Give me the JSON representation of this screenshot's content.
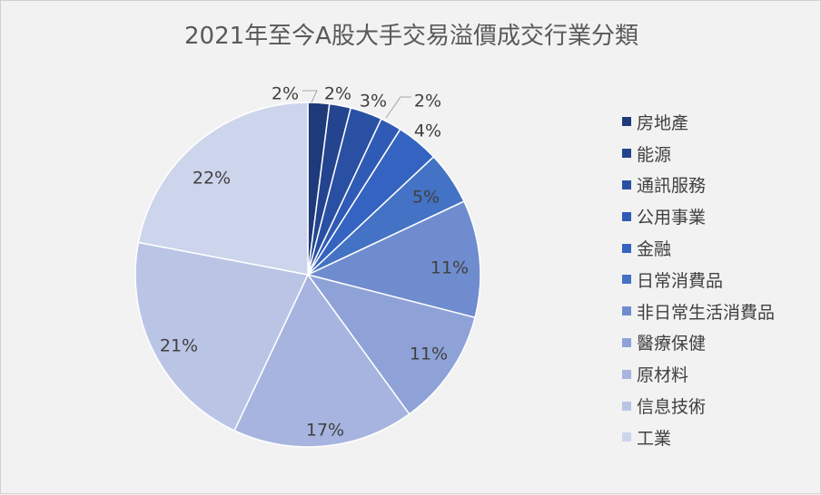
{
  "chart_data": {
    "type": "pie",
    "title": "2021年至今A股大手交易溢價成交行業分類",
    "legend_position": "right",
    "slices": [
      {
        "name": "房地產",
        "value": 2,
        "label": "2%",
        "color": "#1f3a7a"
      },
      {
        "name": "能源",
        "value": 2,
        "label": "2%",
        "color": "#24448f"
      },
      {
        "name": "通訊服務",
        "value": 3,
        "label": "3%",
        "color": "#2a50a3"
      },
      {
        "name": "公用事業",
        "value": 2,
        "label": "2%",
        "color": "#2f5ab5"
      },
      {
        "name": "金融",
        "value": 4,
        "label": "4%",
        "color": "#3563c2"
      },
      {
        "name": "日常消費品",
        "value": 5,
        "label": "5%",
        "color": "#4472c4"
      },
      {
        "name": "非日常生活消費品",
        "value": 11,
        "label": "11%",
        "color": "#6f8ccf"
      },
      {
        "name": "醫療保健",
        "value": 11,
        "label": "11%",
        "color": "#8ea2d8"
      },
      {
        "name": "原材料",
        "value": 17,
        "label": "17%",
        "color": "#a6b4df"
      },
      {
        "name": "信息技術",
        "value": 21,
        "label": "21%",
        "color": "#bac5e6"
      },
      {
        "name": "工業",
        "value": 22,
        "label": "22%",
        "color": "#cdd5ec"
      }
    ]
  }
}
